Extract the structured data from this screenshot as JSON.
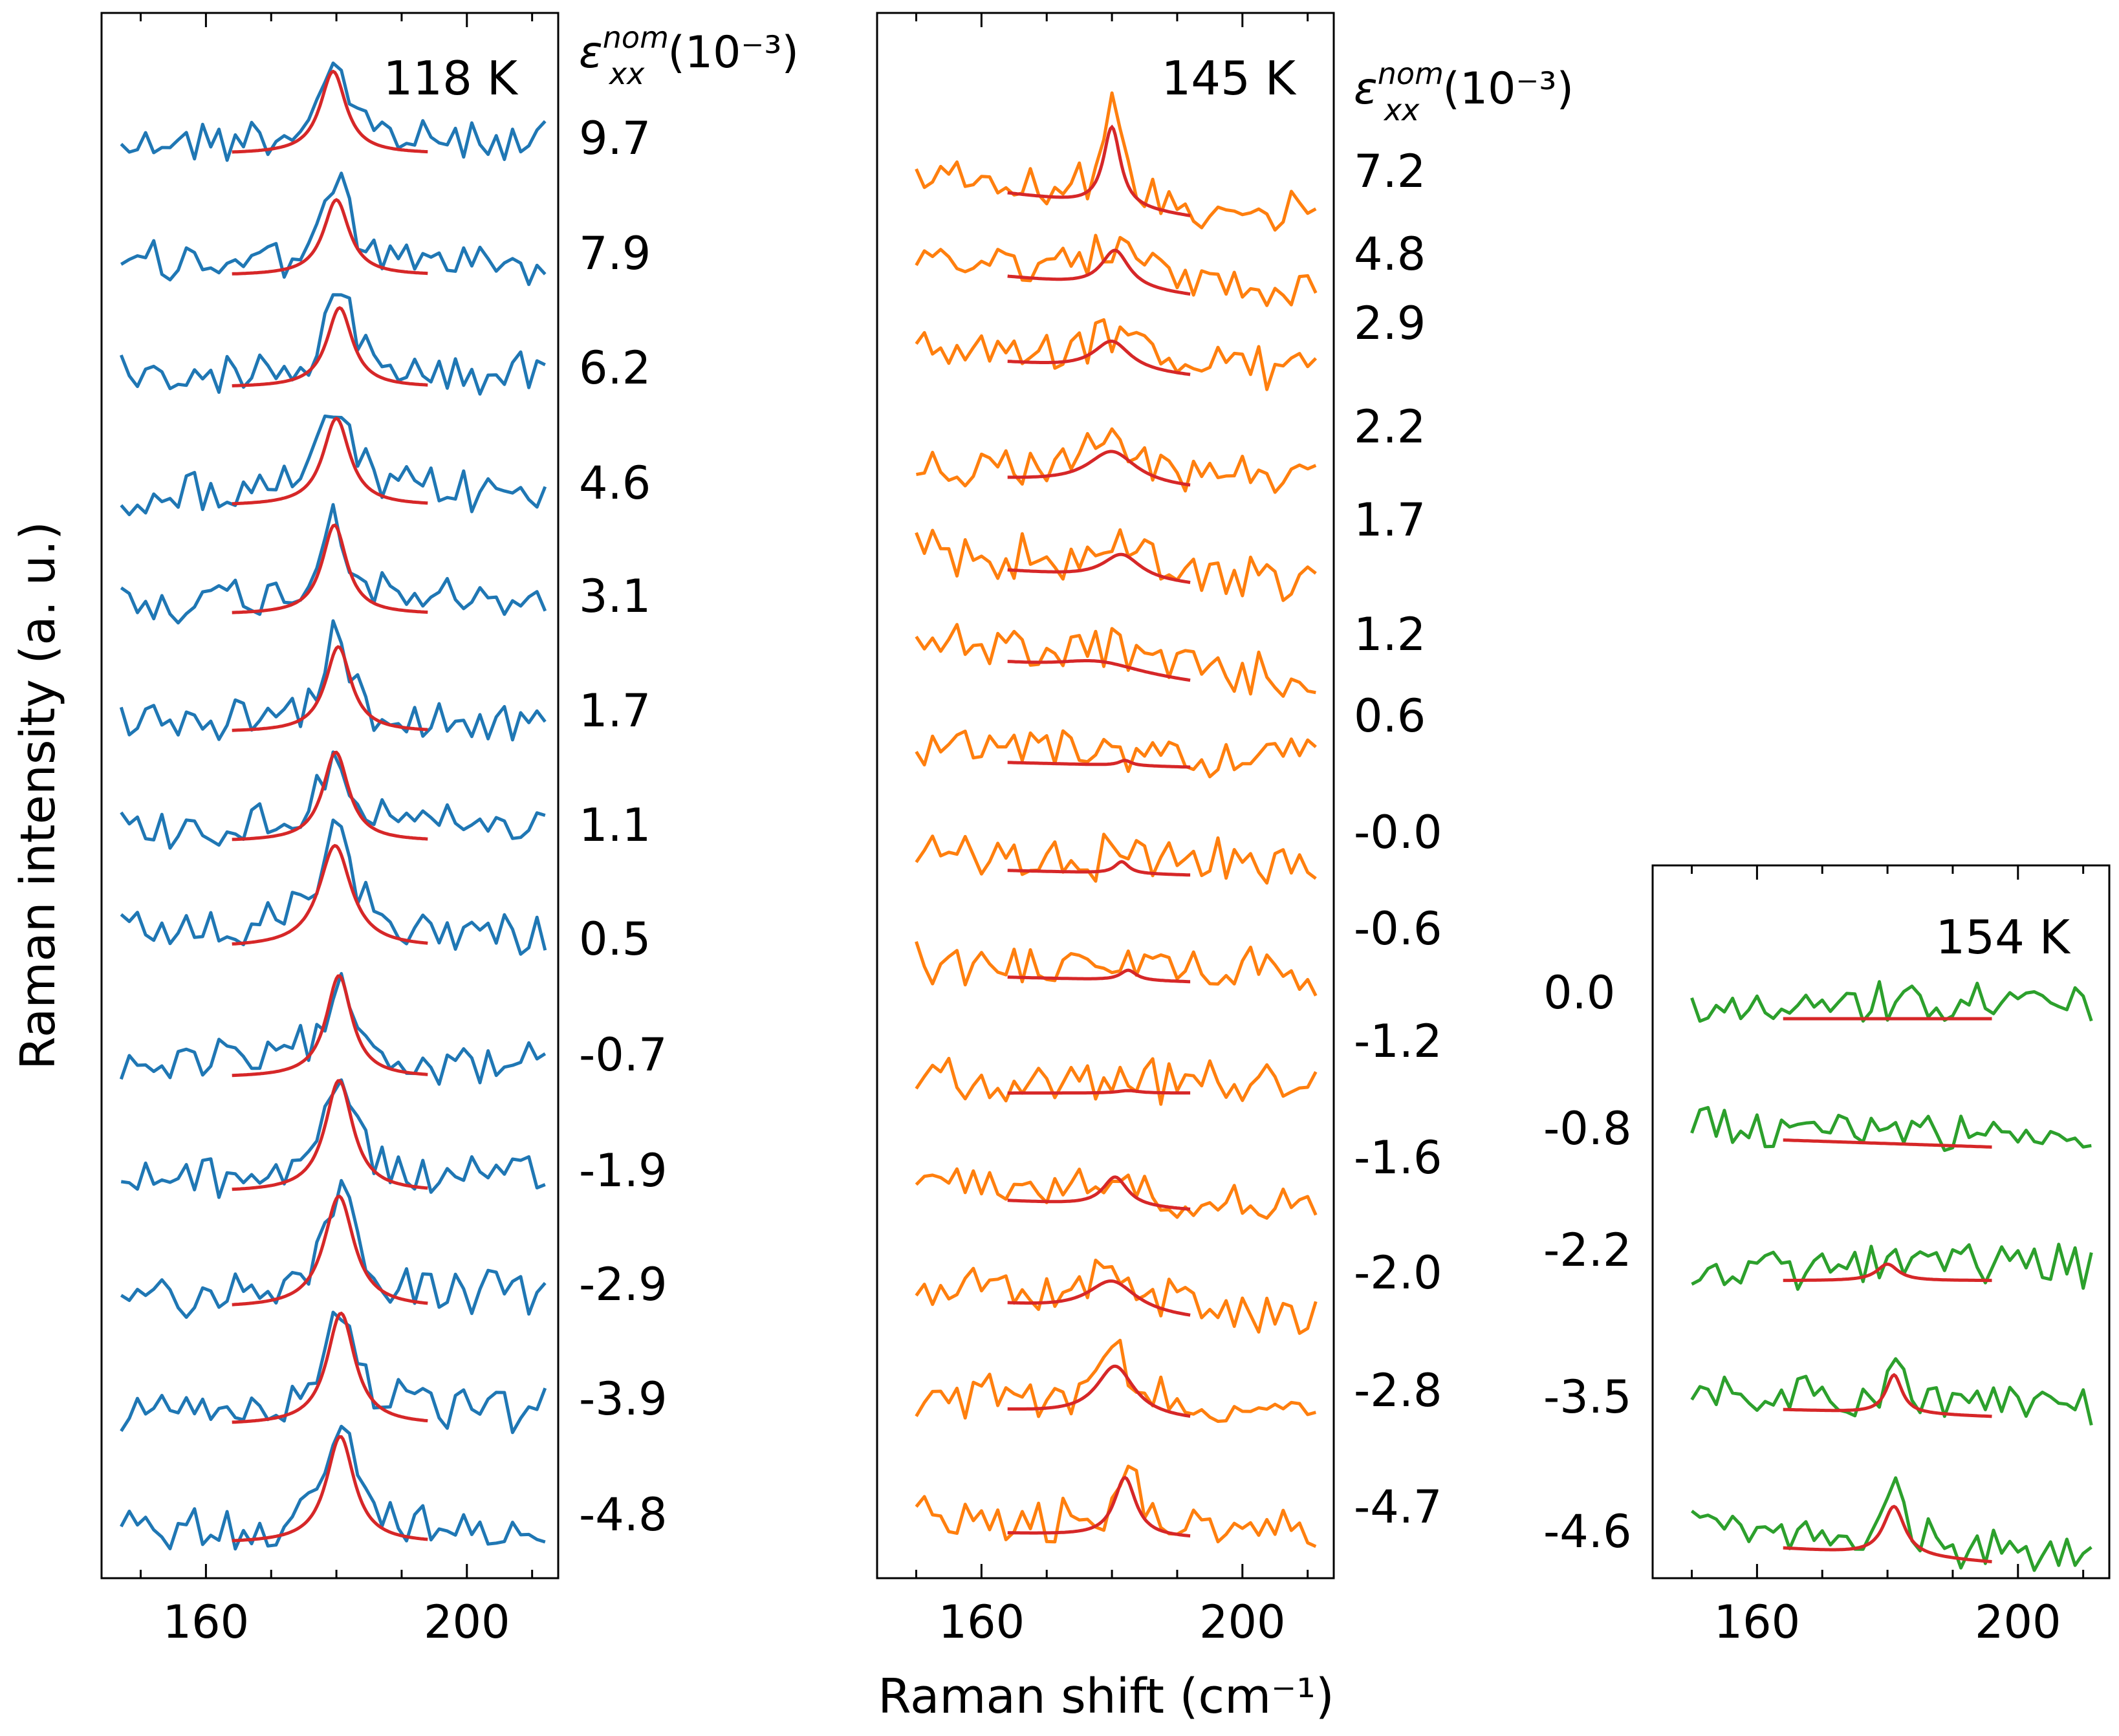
{
  "figure": {
    "ylabel": "Raman intensity (a. u.)",
    "xlabel": "Raman shift (cm⁻¹)",
    "strain_label": {
      "base": "ε",
      "sup": "nom",
      "sub": "xx",
      "unit": "(10⁻³)"
    }
  },
  "colors": {
    "fit": "#d62728",
    "p118": "#1f77b4",
    "p145": "#ff7f0e",
    "p154": "#2ca02c"
  },
  "chart_data": [
    {
      "type": "line",
      "title": "118 K",
      "x_range": [
        147,
        212
      ],
      "xlim": [
        144,
        214
      ],
      "xticks": [
        160,
        200
      ],
      "fit_range": [
        164,
        194
      ],
      "strain_labels": [
        "9.7",
        "7.9",
        "6.2",
        "4.6",
        "3.1",
        "1.7",
        "1.1",
        "0.5",
        "-0.7",
        "-1.9",
        "-2.9",
        "-3.9",
        "-4.8"
      ],
      "series_legend": "none",
      "series": [
        {
          "strain": "9.7",
          "baseline": 0.93,
          "peak_center": 179.5,
          "peak_height": 0.85,
          "peak_width": 2.4,
          "background_slope": 0.0
        },
        {
          "strain": "7.9",
          "baseline": 0.93,
          "peak_center": 180.0,
          "peak_height": 0.78,
          "peak_width": 2.4,
          "background_slope": 0.0
        },
        {
          "strain": "6.2",
          "baseline": 0.93,
          "peak_center": 180.5,
          "peak_height": 0.82,
          "peak_width": 2.4,
          "background_slope": 0.0
        },
        {
          "strain": "4.6",
          "baseline": 0.93,
          "peak_center": 180.0,
          "peak_height": 0.9,
          "peak_width": 2.5,
          "background_slope": 0.0
        },
        {
          "strain": "3.1",
          "baseline": 0.93,
          "peak_center": 179.7,
          "peak_height": 0.92,
          "peak_width": 2.3,
          "background_slope": 0.0
        },
        {
          "strain": "1.7",
          "baseline": 0.93,
          "peak_center": 180.3,
          "peak_height": 0.88,
          "peak_width": 2.4,
          "background_slope": 0.0
        },
        {
          "strain": "1.1",
          "baseline": 0.93,
          "peak_center": 179.9,
          "peak_height": 0.92,
          "peak_width": 2.4,
          "background_slope": 0.0
        },
        {
          "strain": "0.5",
          "baseline": 0.93,
          "peak_center": 179.8,
          "peak_height": 1.05,
          "peak_width": 3.0,
          "background_slope": 0.0
        },
        {
          "strain": "-0.7",
          "baseline": 0.93,
          "peak_center": 180.4,
          "peak_height": 1.05,
          "peak_width": 2.4,
          "background_slope": 0.0
        },
        {
          "strain": "-1.9",
          "baseline": 0.93,
          "peak_center": 180.4,
          "peak_height": 1.15,
          "peak_width": 2.6,
          "background_slope": 0.0
        },
        {
          "strain": "-2.9",
          "baseline": 0.93,
          "peak_center": 180.4,
          "peak_height": 1.15,
          "peak_width": 2.8,
          "background_slope": 0.0
        },
        {
          "strain": "-3.9",
          "baseline": 0.93,
          "peak_center": 180.7,
          "peak_height": 1.15,
          "peak_width": 2.6,
          "background_slope": 0.0
        },
        {
          "strain": "-4.8",
          "baseline": 0.93,
          "peak_center": 180.6,
          "peak_height": 1.1,
          "peak_width": 2.6,
          "background_slope": 0.0
        }
      ]
    },
    {
      "type": "line",
      "title": "145 K",
      "x_range": [
        150,
        212
      ],
      "xlim": [
        144,
        214
      ],
      "xticks": [
        160,
        200
      ],
      "fit_range": [
        164,
        192
      ],
      "strain_labels": [
        "7.2",
        "4.8",
        "2.9",
        "2.2",
        "1.7",
        "1.2",
        "0.6",
        "-0.0",
        "-0.6",
        "-1.2",
        "-1.6",
        "-2.0",
        "-2.8",
        "-4.7"
      ],
      "series_legend": "none",
      "series": [
        {
          "strain": "7.2",
          "baseline": 0.93,
          "peak_center": 180.0,
          "peak_height": 0.95,
          "peak_width": 1.6,
          "background_slope": -0.01
        },
        {
          "strain": "4.8",
          "baseline": 0.93,
          "peak_center": 180.5,
          "peak_height": 0.45,
          "peak_width": 2.6,
          "background_slope": -0.008
        },
        {
          "strain": "2.9",
          "baseline": 0.93,
          "peak_center": 180.0,
          "peak_height": 0.35,
          "peak_width": 3.4,
          "background_slope": -0.006
        },
        {
          "strain": "2.2",
          "baseline": 0.93,
          "peak_center": 180.0,
          "peak_height": 0.4,
          "peak_width": 4.5,
          "background_slope": -0.004
        },
        {
          "strain": "1.7",
          "baseline": 0.93,
          "peak_center": 181.5,
          "peak_height": 0.3,
          "peak_width": 3.5,
          "background_slope": -0.006
        },
        {
          "strain": "1.2",
          "baseline": 0.93,
          "peak_center": 178.0,
          "peak_height": 0.15,
          "peak_width": 8.0,
          "background_slope": -0.008
        },
        {
          "strain": "0.6",
          "baseline": 0.93,
          "peak_center": 182.0,
          "peak_height": 0.06,
          "peak_width": 1.2,
          "background_slope": -0.002
        },
        {
          "strain": "-0.0",
          "baseline": 0.93,
          "peak_center": 181.5,
          "peak_height": 0.14,
          "peak_width": 1.3,
          "background_slope": -0.002
        },
        {
          "strain": "-0.6",
          "baseline": 0.93,
          "peak_center": 182.5,
          "peak_height": 0.12,
          "peak_width": 1.5,
          "background_slope": -0.002
        },
        {
          "strain": "-1.2",
          "baseline": 0.93,
          "peak_center": 182.5,
          "peak_height": 0.03,
          "peak_width": 2.0,
          "background_slope": 0.0
        },
        {
          "strain": "-1.6",
          "baseline": 0.93,
          "peak_center": 180.5,
          "peak_height": 0.35,
          "peak_width": 2.3,
          "background_slope": -0.004
        },
        {
          "strain": "-2.0",
          "baseline": 0.93,
          "peak_center": 180.0,
          "peak_height": 0.38,
          "peak_width": 4.5,
          "background_slope": -0.006
        },
        {
          "strain": "-2.8",
          "baseline": 0.93,
          "peak_center": 180.5,
          "peak_height": 0.6,
          "peak_width": 3.5,
          "background_slope": -0.004
        },
        {
          "strain": "-4.7",
          "baseline": 0.93,
          "peak_center": 182.0,
          "peak_height": 0.7,
          "peak_width": 2.0,
          "background_slope": -0.002
        }
      ]
    },
    {
      "type": "line",
      "title": "154 K",
      "x_range": [
        150,
        212
      ],
      "xlim": [
        144,
        214
      ],
      "xticks": [
        160,
        200
      ],
      "fit_range": [
        164,
        196
      ],
      "strain_labels": [
        "0.0",
        "-0.8",
        "-2.2",
        "-3.5",
        "-4.6"
      ],
      "series_legend": "none",
      "series": [
        {
          "strain": "0.0",
          "baseline": 0.93,
          "peak_center": 182.0,
          "peak_height": 0.0,
          "peak_width": 2.0,
          "background_slope": 0.0
        },
        {
          "strain": "-0.8",
          "baseline": 0.93,
          "peak_center": 182.0,
          "peak_height": 0.0,
          "peak_width": 2.0,
          "background_slope": -0.002
        },
        {
          "strain": "-2.2",
          "baseline": 0.93,
          "peak_center": 180.0,
          "peak_height": 0.15,
          "peak_width": 2.0,
          "background_slope": 0.0
        },
        {
          "strain": "-3.5",
          "baseline": 0.93,
          "peak_center": 181.0,
          "peak_height": 0.35,
          "peak_width": 1.5,
          "background_slope": -0.002
        },
        {
          "strain": "-4.6",
          "baseline": 0.93,
          "peak_center": 181.0,
          "peak_height": 0.45,
          "peak_width": 2.0,
          "background_slope": -0.004
        }
      ]
    }
  ]
}
